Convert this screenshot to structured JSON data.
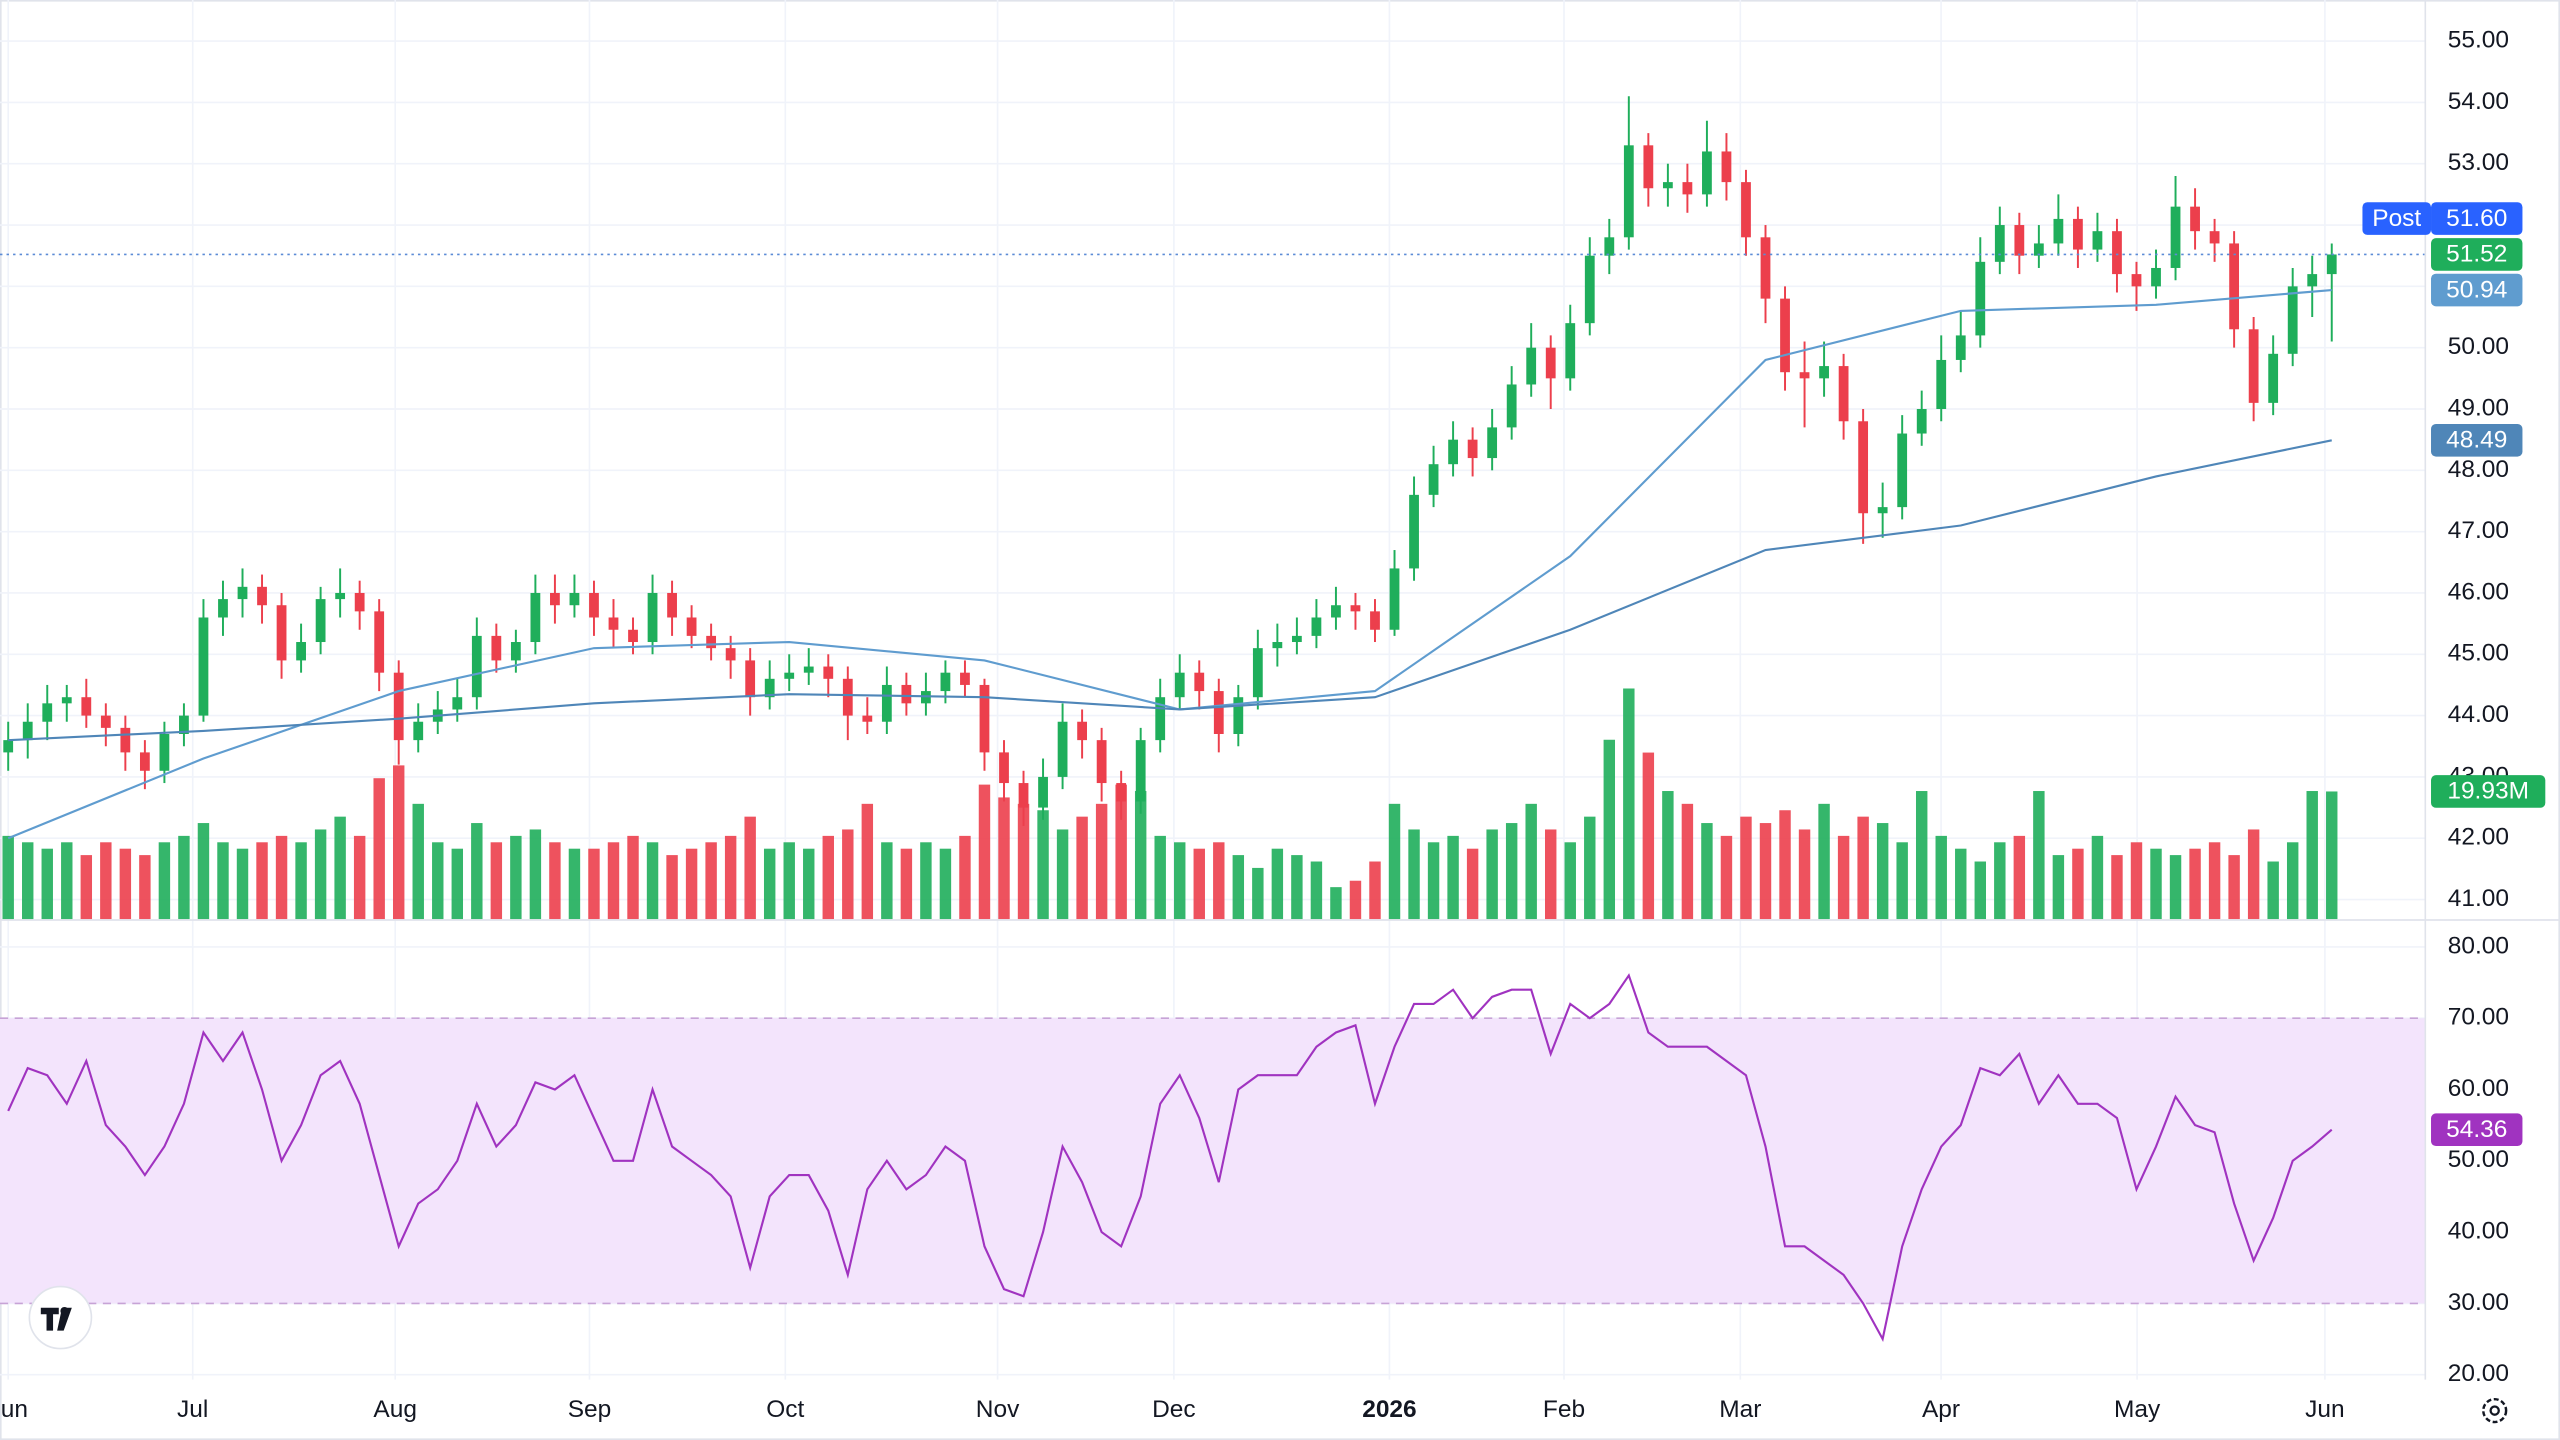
{
  "chart_data": {
    "type": "candlestick",
    "xlim": [
      -0.42,
      123.75
    ],
    "xticks": [
      {
        "value": 0,
        "label": "Jun"
      },
      {
        "value": 9.45,
        "label": "Jul"
      },
      {
        "value": 19.82,
        "label": "Aug"
      },
      {
        "value": 29.77,
        "label": "Sep"
      },
      {
        "value": 39.8,
        "label": "Oct"
      },
      {
        "value": 50.67,
        "label": "Nov"
      },
      {
        "value": 59.7,
        "label": "Dec"
      },
      {
        "value": 70.74,
        "label": "2026"
      },
      {
        "value": 79.68,
        "label": "Feb"
      },
      {
        "value": 88.71,
        "label": "Mar"
      },
      {
        "value": 98.99,
        "label": "Apr"
      },
      {
        "value": 109.03,
        "label": "May"
      },
      {
        "value": 118.65,
        "label": "Jun"
      }
    ],
    "ylim": [
      40.68,
      55.67
    ],
    "yticks": [
      {
        "value": 41,
        "label": "41.00"
      },
      {
        "value": 42,
        "label": "42.00"
      },
      {
        "value": 43,
        "label": "43.00"
      },
      {
        "value": 44,
        "label": "44.00"
      },
      {
        "value": 45,
        "label": "45.00"
      },
      {
        "value": 46,
        "label": "46.00"
      },
      {
        "value": 47,
        "label": "47.00"
      },
      {
        "value": 48,
        "label": "48.00"
      },
      {
        "value": 49,
        "label": "49.00"
      },
      {
        "value": 50,
        "label": "50.00"
      },
      {
        "value": 51,
        "label": "51.00"
      },
      {
        "value": 52,
        "label": "52.00"
      },
      {
        "value": 53,
        "label": "53.00"
      },
      {
        "value": 54,
        "label": "54.00"
      },
      {
        "value": 55,
        "label": "55.00"
      }
    ],
    "grid": true,
    "up_color": "#1fae5b",
    "down_color": "#ec3f4c",
    "open": [
      43.4,
      43.6,
      43.9,
      44.2,
      44.3,
      44.0,
      43.8,
      43.4,
      43.1,
      43.7,
      44.0,
      45.6,
      45.9,
      46.1,
      45.8,
      44.9,
      45.2,
      45.9,
      46.0,
      45.7,
      44.7,
      43.6,
      43.9,
      44.1,
      44.3,
      45.3,
      44.9,
      45.2,
      46.0,
      45.8,
      46.0,
      45.6,
      45.4,
      45.2,
      46.0,
      45.6,
      45.3,
      45.1,
      44.9,
      44.3,
      44.6,
      44.7,
      44.8,
      44.6,
      44.0,
      43.9,
      44.5,
      44.2,
      44.4,
      44.7,
      44.5,
      43.4,
      42.9,
      42.5,
      43.0,
      43.9,
      43.6,
      42.9,
      42.6,
      43.6,
      44.3,
      44.7,
      44.4,
      43.7,
      44.3,
      45.1,
      45.2,
      45.3,
      45.6,
      45.8,
      45.7,
      45.4,
      46.4,
      47.6,
      48.1,
      48.5,
      48.2,
      48.7,
      49.4,
      50.0,
      49.5,
      50.4,
      51.5,
      51.8,
      53.3,
      52.6,
      52.7,
      52.5,
      53.2,
      52.7,
      51.8,
      50.8,
      49.6,
      49.5,
      49.7,
      48.8,
      47.3,
      47.4,
      48.6,
      49.0,
      49.8,
      50.2,
      51.4,
      52.0,
      51.5,
      51.7,
      52.1,
      51.6,
      51.9,
      51.2,
      51.0,
      51.3,
      52.3,
      51.9,
      51.7,
      50.3,
      49.1,
      49.9,
      51.0,
      51.2
    ],
    "high": [
      43.9,
      44.2,
      44.5,
      44.5,
      44.6,
      44.2,
      44.0,
      43.6,
      43.9,
      44.2,
      45.9,
      46.2,
      46.4,
      46.3,
      46.0,
      45.5,
      46.1,
      46.4,
      46.2,
      45.9,
      44.9,
      44.2,
      44.4,
      44.6,
      45.6,
      45.5,
      45.4,
      46.3,
      46.3,
      46.3,
      46.2,
      45.9,
      45.6,
      46.3,
      46.2,
      45.8,
      45.5,
      45.3,
      45.1,
      44.9,
      45.0,
      45.1,
      45.0,
      44.8,
      44.3,
      44.8,
      44.7,
      44.7,
      44.9,
      44.9,
      44.6,
      43.6,
      43.1,
      43.3,
      44.2,
      44.1,
      43.8,
      43.1,
      43.8,
      44.6,
      45.0,
      44.9,
      44.6,
      44.5,
      45.4,
      45.5,
      45.6,
      45.9,
      46.1,
      46.0,
      45.9,
      46.7,
      47.9,
      48.4,
      48.8,
      48.7,
      49.0,
      49.7,
      50.4,
      50.2,
      50.7,
      51.8,
      52.1,
      54.1,
      53.5,
      53.0,
      53.0,
      53.7,
      53.5,
      52.9,
      52.0,
      51.0,
      50.1,
      50.1,
      49.9,
      49.0,
      47.8,
      48.9,
      49.3,
      50.2,
      50.6,
      51.8,
      52.3,
      52.2,
      52.0,
      52.5,
      52.3,
      52.2,
      52.1,
      51.4,
      51.6,
      52.8,
      52.6,
      52.1,
      51.9,
      50.5,
      50.2,
      51.3,
      51.5,
      51.7
    ],
    "low": [
      43.1,
      43.3,
      43.6,
      43.9,
      43.8,
      43.5,
      43.1,
      42.8,
      42.9,
      43.5,
      43.9,
      45.3,
      45.6,
      45.5,
      44.6,
      44.7,
      45.0,
      45.6,
      45.4,
      44.4,
      43.2,
      43.4,
      43.7,
      43.9,
      44.1,
      44.7,
      44.7,
      45.0,
      45.5,
      45.6,
      45.3,
      45.1,
      45.0,
      45.0,
      45.3,
      45.1,
      44.9,
      44.6,
      44.0,
      44.1,
      44.4,
      44.5,
      44.3,
      43.6,
      43.7,
      43.7,
      44.0,
      44.0,
      44.2,
      44.3,
      43.1,
      42.6,
      42.2,
      42.3,
      42.8,
      43.3,
      42.6,
      42.3,
      42.4,
      43.4,
      44.1,
      44.1,
      43.4,
      43.5,
      44.1,
      44.8,
      45.0,
      45.1,
      45.4,
      45.4,
      45.2,
      45.3,
      46.2,
      47.4,
      47.9,
      47.9,
      48.0,
      48.5,
      49.2,
      49.0,
      49.3,
      50.2,
      51.2,
      51.6,
      52.3,
      52.3,
      52.2,
      52.3,
      52.4,
      51.5,
      50.4,
      49.3,
      48.7,
      49.2,
      48.5,
      46.8,
      46.9,
      47.2,
      48.4,
      48.8,
      49.6,
      50.0,
      51.2,
      51.2,
      51.3,
      51.5,
      51.3,
      51.4,
      50.9,
      50.6,
      50.8,
      51.1,
      51.6,
      51.4,
      50.0,
      48.8,
      48.9,
      49.7,
      50.5,
      50.1
    ],
    "close": [
      43.6,
      43.9,
      44.2,
      44.3,
      44.0,
      43.8,
      43.4,
      43.1,
      43.7,
      44.0,
      45.6,
      45.9,
      46.1,
      45.8,
      44.9,
      45.2,
      45.9,
      46.0,
      45.7,
      44.7,
      43.6,
      43.9,
      44.1,
      44.3,
      45.3,
      44.9,
      45.2,
      46.0,
      45.8,
      46.0,
      45.6,
      45.4,
      45.2,
      46.0,
      45.6,
      45.3,
      45.1,
      44.9,
      44.3,
      44.6,
      44.7,
      44.8,
      44.6,
      44.0,
      43.9,
      44.5,
      44.2,
      44.4,
      44.7,
      44.5,
      43.4,
      42.9,
      42.5,
      43.0,
      43.9,
      43.6,
      42.9,
      42.6,
      43.6,
      44.3,
      44.7,
      44.4,
      43.7,
      44.3,
      45.1,
      45.2,
      45.3,
      45.6,
      45.8,
      45.7,
      45.4,
      46.4,
      47.6,
      48.1,
      48.5,
      48.2,
      48.7,
      49.4,
      50.0,
      49.5,
      50.4,
      51.5,
      51.8,
      53.3,
      52.6,
      52.7,
      52.5,
      53.2,
      52.7,
      51.8,
      50.8,
      49.6,
      49.5,
      49.7,
      48.8,
      47.3,
      47.4,
      48.6,
      49.0,
      49.8,
      50.2,
      51.4,
      52.0,
      51.5,
      51.7,
      52.1,
      51.6,
      51.9,
      51.2,
      51.0,
      51.3,
      52.3,
      51.9,
      51.7,
      50.3,
      49.1,
      49.9,
      51.0,
      51.2,
      51.52
    ],
    "last_color": "#1fae5b",
    "moving_averages": [
      {
        "color": "#5f9ccf",
        "x": [
          0,
          10,
          20,
          30,
          40,
          50,
          60,
          70,
          80,
          90,
          100,
          110,
          119
        ],
        "values": [
          42.0,
          43.3,
          44.4,
          45.1,
          45.2,
          44.9,
          44.1,
          44.4,
          46.6,
          49.8,
          50.6,
          50.7,
          50.94
        ]
      },
      {
        "color": "#4f86b8",
        "x": [
          0,
          10,
          20,
          30,
          40,
          50,
          60,
          70,
          80,
          90,
          100,
          110,
          119
        ],
        "values": [
          43.6,
          43.75,
          43.95,
          44.2,
          44.35,
          44.3,
          44.1,
          44.3,
          45.4,
          46.7,
          47.1,
          47.9,
          48.49
        ]
      }
    ],
    "post_market": {
      "label": "Post",
      "color": "#2962ff",
      "price": {
        "value": 51.6,
        "label": "51.60"
      }
    },
    "volume": {
      "ylim": [
        0,
        40
      ],
      "last_label": "19.93M",
      "values": [
        13,
        12,
        11,
        12,
        10,
        12,
        11,
        10,
        12,
        13,
        15,
        12,
        11,
        12,
        13,
        12,
        14,
        16,
        13,
        22,
        24,
        18,
        12,
        11,
        15,
        12,
        13,
        14,
        12,
        11,
        11,
        12,
        13,
        12,
        10,
        11,
        12,
        13,
        16,
        11,
        12,
        11,
        13,
        14,
        18,
        12,
        11,
        12,
        11,
        13,
        21,
        19,
        18,
        17,
        14,
        16,
        18,
        21,
        20,
        13,
        12,
        11,
        12,
        10,
        8,
        11,
        10,
        9,
        5,
        6,
        9,
        18,
        14,
        12,
        13,
        11,
        14,
        15,
        18,
        14,
        12,
        16,
        28,
        36,
        26,
        20,
        18,
        15,
        13,
        16,
        15,
        17,
        14,
        18,
        13,
        16,
        15,
        12,
        20,
        13,
        11,
        9,
        12,
        13,
        20,
        10,
        11,
        13,
        10,
        12,
        11,
        10,
        11,
        12,
        10,
        14,
        9,
        12,
        20,
        19.93
      ]
    },
    "rsi": {
      "color": "#a033c0",
      "band": [
        30,
        70
      ],
      "band_color": "#f3e4fc",
      "ylim": [
        19.31,
        83.89
      ],
      "yticks": [
        {
          "value": 20,
          "label": "20.00"
        },
        {
          "value": 30,
          "label": "30.00"
        },
        {
          "value": 40,
          "label": "40.00"
        },
        {
          "value": 50,
          "label": "50.00"
        },
        {
          "value": 60,
          "label": "60.00"
        },
        {
          "value": 70,
          "label": "70.00"
        },
        {
          "value": 80,
          "label": "80.00"
        }
      ],
      "values": [
        57,
        63,
        62,
        58,
        64,
        55,
        52,
        48,
        52,
        58,
        68,
        64,
        68,
        60,
        50,
        55,
        62,
        64,
        58,
        48,
        38,
        44,
        46,
        50,
        58,
        52,
        55,
        61,
        60,
        62,
        56,
        50,
        50,
        60,
        52,
        50,
        48,
        45,
        35,
        45,
        48,
        48,
        43,
        34,
        46,
        50,
        46,
        48,
        52,
        50,
        38,
        32,
        31,
        40,
        52,
        47,
        40,
        38,
        45,
        58,
        62,
        56,
        47,
        60,
        62,
        62,
        62,
        66,
        68,
        69,
        58,
        66,
        72,
        72,
        74,
        70,
        73,
        74,
        74,
        65,
        72,
        70,
        72,
        76,
        68,
        66,
        66,
        66,
        64,
        62,
        52,
        38,
        38,
        36,
        34,
        30,
        25,
        38,
        46,
        52,
        55,
        63,
        62,
        65,
        58,
        62,
        58,
        58,
        56,
        46,
        52,
        59,
        55,
        54,
        44,
        36,
        42,
        50,
        52,
        54.36
      ]
    }
  }
}
